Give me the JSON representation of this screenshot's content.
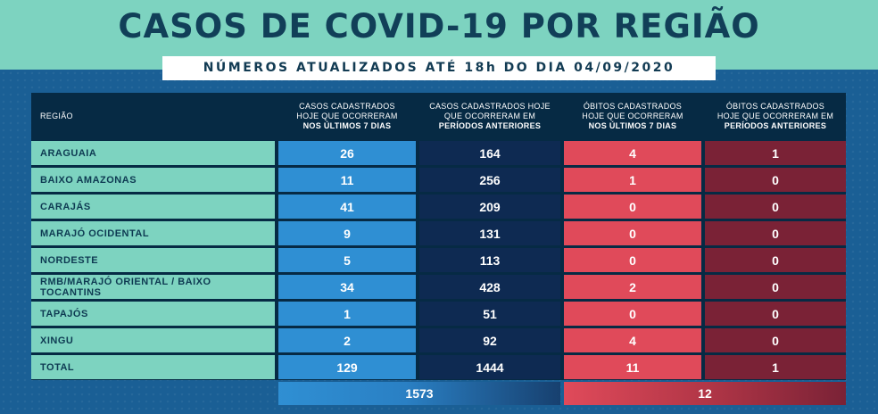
{
  "title": "CASOS DE COVID-19 POR REGIÃO",
  "subtitle": "NÚMEROS ATUALIZADOS ATÉ 18h DO DIA 04/09/2020",
  "headers": {
    "region": "REGIÃO",
    "col1": [
      "CASOS CADASTRADOS",
      "HOJE QUE OCORRERAM",
      "NOS ÚLTIMOS 7 DIAS"
    ],
    "col2": [
      "CASOS CADASTRADOS HOJE",
      "QUE OCORRERAM EM",
      "PERÍODOS ANTERIORES"
    ],
    "col3": [
      "ÓBITOS CADASTRADOS",
      "HOJE QUE OCORRERAM",
      "NOS ÚLTIMOS 7 DIAS"
    ],
    "col4": [
      "ÓBITOS CADASTRADOS",
      "HOJE QUE OCORRERAM EM",
      "PERÍODOS ANTERIORES"
    ]
  },
  "rows": [
    {
      "region": "ARAGUAIA",
      "values": [
        "26",
        "164",
        "4",
        "1"
      ]
    },
    {
      "region": "BAIXO AMAZONAS",
      "values": [
        "11",
        "256",
        "1",
        "0"
      ]
    },
    {
      "region": "CARAJÁS",
      "values": [
        "41",
        "209",
        "0",
        "0"
      ]
    },
    {
      "region": "MARAJÓ OCIDENTAL",
      "values": [
        "9",
        "131",
        "0",
        "0"
      ]
    },
    {
      "region": "NORDESTE",
      "values": [
        "5",
        "113",
        "0",
        "0"
      ]
    },
    {
      "region": "RMB/MARAJÓ ORIENTAL / BAIXO TOCANTINS",
      "values": [
        "34",
        "428",
        "2",
        "0"
      ]
    },
    {
      "region": "TAPAJÓS",
      "values": [
        "1",
        "51",
        "0",
        "0"
      ]
    },
    {
      "region": "XINGU",
      "values": [
        "2",
        "92",
        "4",
        "0"
      ]
    },
    {
      "region": "TOTAL",
      "values": [
        "129",
        "1444",
        "11",
        "1"
      ]
    }
  ],
  "grand_totals": {
    "cases": "1573",
    "deaths": "12"
  },
  "colors": {
    "teal": "#7dd3c0",
    "navy_title": "#113f58",
    "blue_col": "#2f8fd3",
    "dark_blue_col": "#0e2a52",
    "red_col": "#e04a5a",
    "dark_red_col": "#7a2236"
  }
}
